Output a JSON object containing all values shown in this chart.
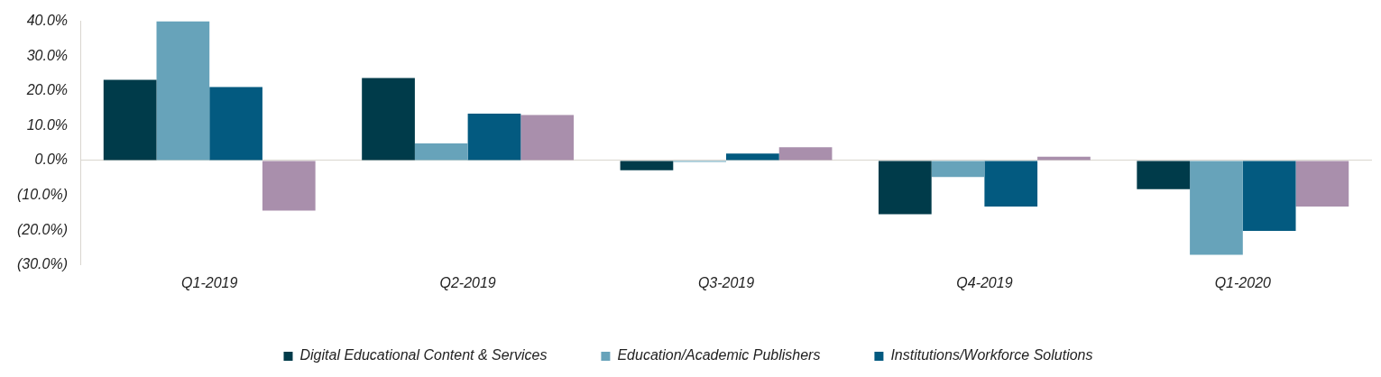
{
  "chart_data": {
    "type": "bar",
    "categories": [
      "Q1-2019",
      "Q2-2019",
      "Q3-2019",
      "Q4-2019",
      "Q1-2020"
    ],
    "series": [
      {
        "name": "Digital Educational Content & Services",
        "color": "#003b4a",
        "values": [
          23.2,
          23.7,
          -2.8,
          -15.4,
          -8.2
        ]
      },
      {
        "name": "Education/Academic Publishers",
        "color": "#67a3ba",
        "values": [
          40.0,
          4.9,
          -0.4,
          -4.7,
          -27.1
        ]
      },
      {
        "name": "Institutions/Workforce Solutions",
        "color": "#035a80",
        "values": [
          21.1,
          13.5,
          2.0,
          -13.2,
          -20.2
        ]
      },
      {
        "color": "#a98fac",
        "values": [
          -14.4,
          13.1,
          3.8,
          1.1,
          -13.2
        ]
      }
    ],
    "ylim": [
      -30,
      40
    ],
    "yticks": [
      {
        "value": -30,
        "label": "(30.0%)"
      },
      {
        "value": -20,
        "label": "(20.0%)"
      },
      {
        "value": -10,
        "label": "(10.0%)"
      },
      {
        "value": 0,
        "label": "0.0%"
      },
      {
        "value": 10,
        "label": "10.0%"
      },
      {
        "value": 20,
        "label": "20.0%"
      },
      {
        "value": 30,
        "label": "30.0%"
      },
      {
        "value": 40,
        "label": "40.0%"
      }
    ],
    "legend": "bottom"
  }
}
